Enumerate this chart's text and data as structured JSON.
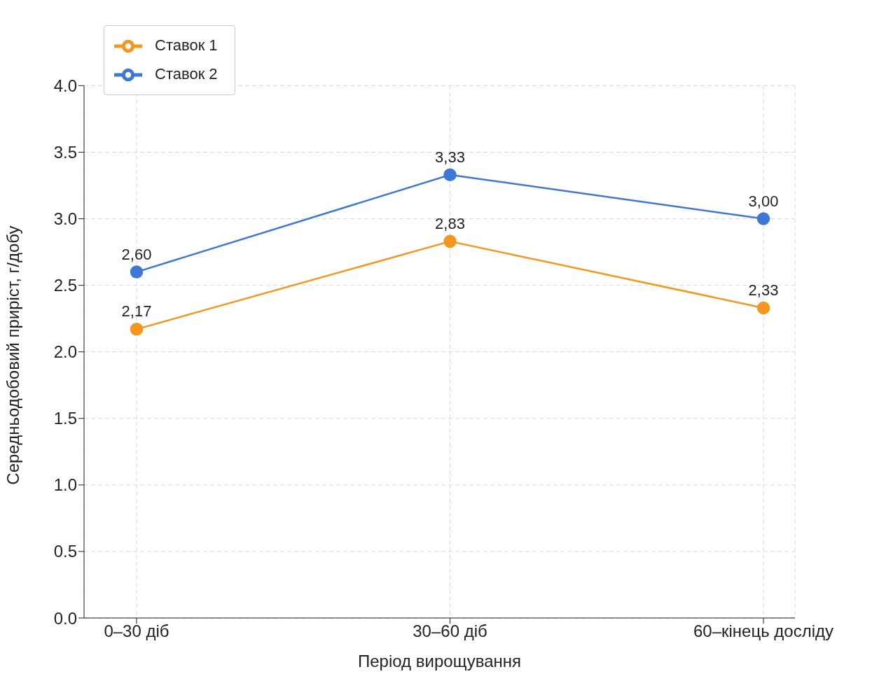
{
  "chart_data": {
    "type": "line",
    "xlabel": "Період вирощування",
    "ylabel": "Середньодобовий приріст, г/добу",
    "categories": [
      "0–30 діб",
      "30–60 діб",
      "60–кінець досліду"
    ],
    "series": [
      {
        "name": "Ставок 1",
        "color": "#f5961e",
        "values": [
          2.17,
          2.83,
          2.33
        ],
        "value_labels": [
          "2,17",
          "2,83",
          "2,33"
        ]
      },
      {
        "name": "Ставок 2",
        "color": "#3f78d2",
        "values": [
          2.6,
          3.33,
          3.0
        ],
        "value_labels": [
          "2,60",
          "3,33",
          "3,00"
        ]
      }
    ],
    "ylim": [
      0,
      4
    ],
    "yticks": [
      {
        "value": 0,
        "label": "0.0"
      },
      {
        "value": 0.5,
        "label": "0.5"
      },
      {
        "value": 1,
        "label": "1.0"
      },
      {
        "value": 1.5,
        "label": "1.5"
      },
      {
        "value": 2,
        "label": "2.0"
      },
      {
        "value": 2.5,
        "label": "2.5"
      },
      {
        "value": 3,
        "label": "3.0"
      },
      {
        "value": 3.5,
        "label": "3.5"
      },
      {
        "value": 4,
        "label": "4.0"
      }
    ],
    "grid": true,
    "legend": "top left",
    "marker": "circle",
    "line_style": "solid"
  }
}
